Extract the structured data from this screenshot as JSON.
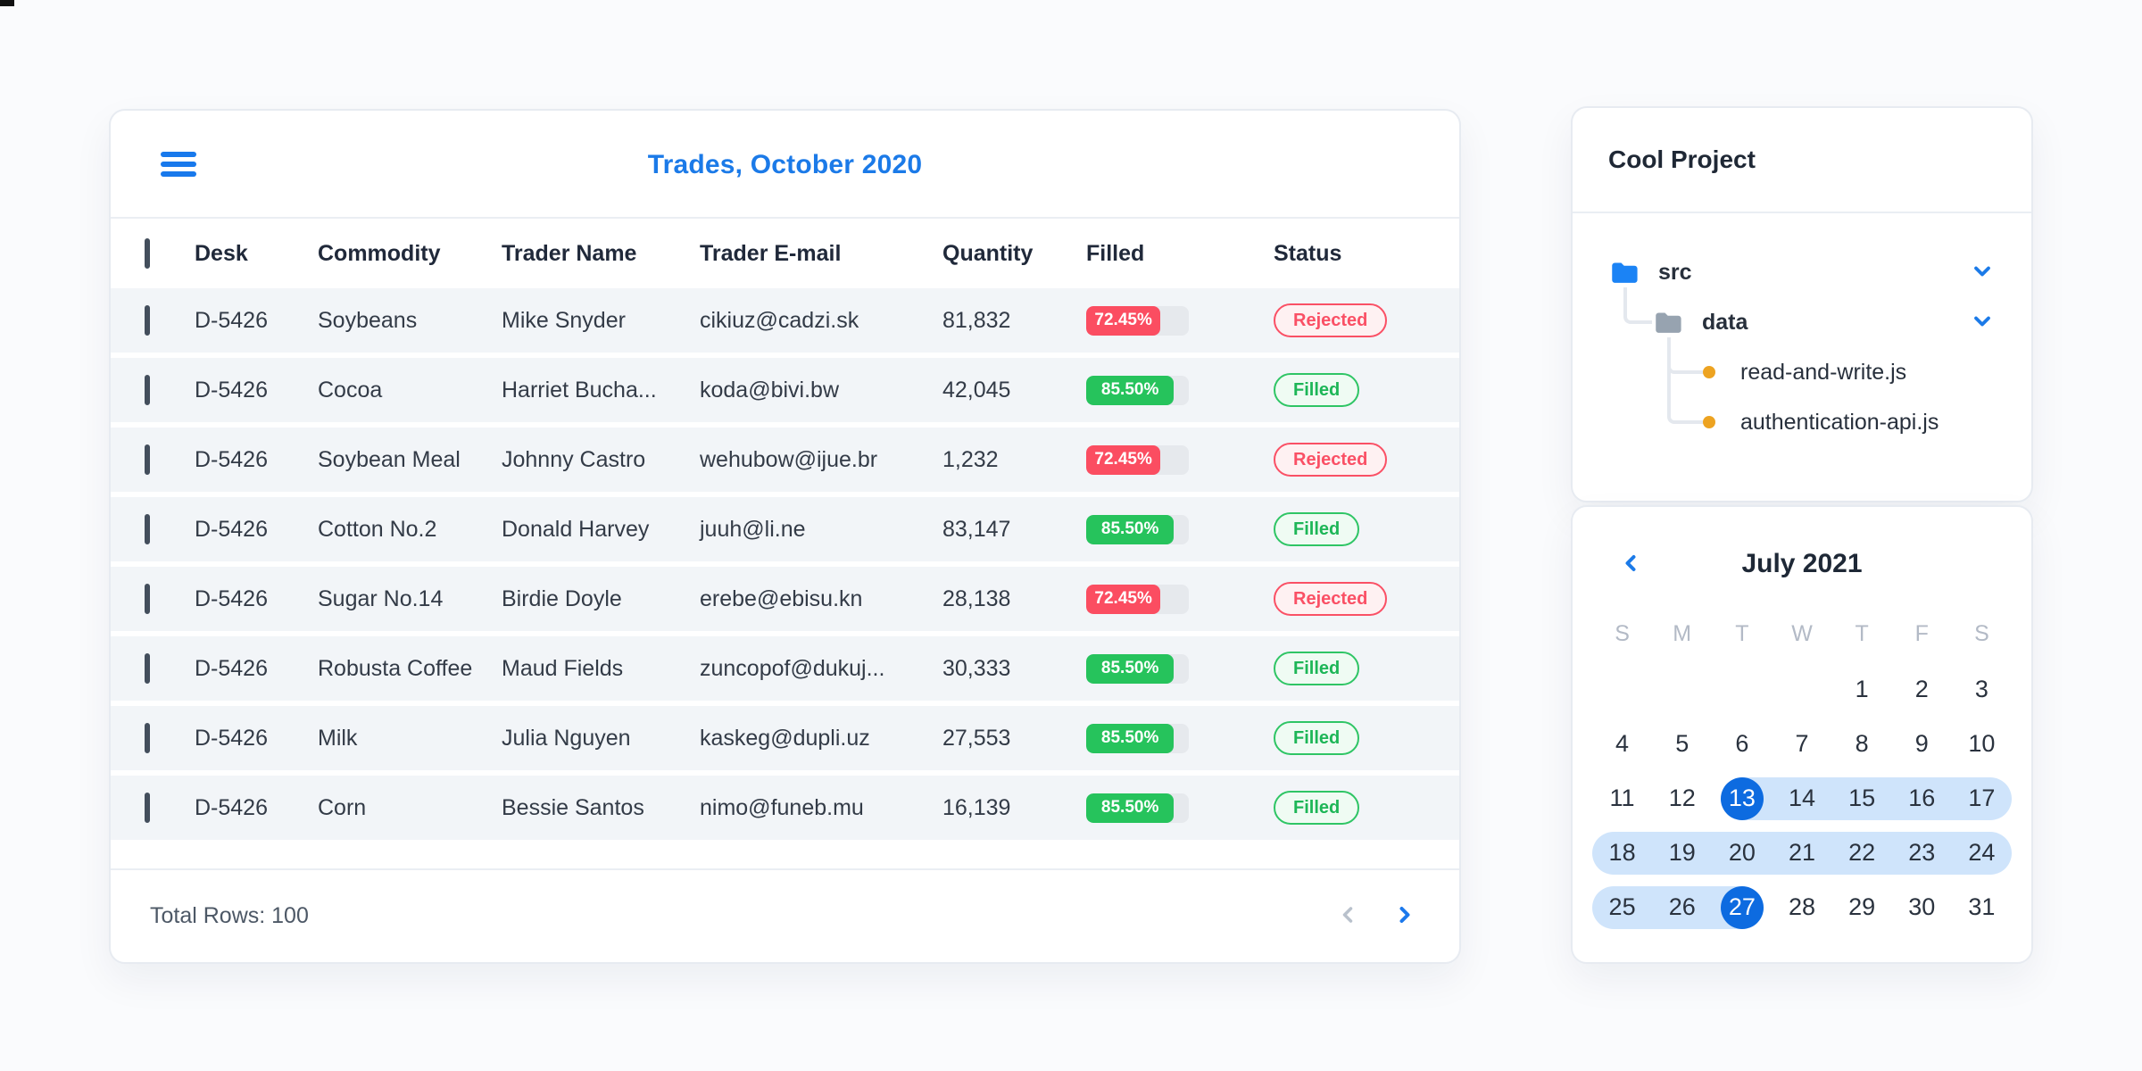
{
  "table": {
    "title": "Trades, October 2020",
    "columns": [
      "Desk",
      "Commodity",
      "Trader Name",
      "Trader E-mail",
      "Quantity",
      "Filled",
      "Status"
    ],
    "rows": [
      {
        "desk": "D-5426",
        "commodity": "Soybeans",
        "trader": "Mike Snyder",
        "email": "cikiuz@cadzi.sk",
        "quantity": "81,832",
        "filled_label": "72.45%",
        "filled_pct": 72.45,
        "status": "Rejected"
      },
      {
        "desk": "D-5426",
        "commodity": "Cocoa",
        "trader": "Harriet Bucha...",
        "email": "koda@bivi.bw",
        "quantity": "42,045",
        "filled_label": "85.50%",
        "filled_pct": 85.5,
        "status": "Filled"
      },
      {
        "desk": "D-5426",
        "commodity": "Soybean Meal",
        "trader": "Johnny Castro",
        "email": "wehubow@ijue.br",
        "quantity": "1,232",
        "filled_label": "72.45%",
        "filled_pct": 72.45,
        "status": "Rejected"
      },
      {
        "desk": "D-5426",
        "commodity": "Cotton No.2",
        "trader": "Donald Harvey",
        "email": "juuh@li.ne",
        "quantity": "83,147",
        "filled_label": "85.50%",
        "filled_pct": 85.5,
        "status": "Filled"
      },
      {
        "desk": "D-5426",
        "commodity": "Sugar No.14",
        "trader": "Birdie Doyle",
        "email": "erebe@ebisu.kn",
        "quantity": "28,138",
        "filled_label": "72.45%",
        "filled_pct": 72.45,
        "status": "Rejected"
      },
      {
        "desk": "D-5426",
        "commodity": "Robusta Coffee",
        "trader": "Maud Fields",
        "email": "zuncopof@dukuj...",
        "quantity": "30,333",
        "filled_label": "85.50%",
        "filled_pct": 85.5,
        "status": "Filled"
      },
      {
        "desk": "D-5426",
        "commodity": "Milk",
        "trader": "Julia Nguyen",
        "email": "kaskeg@dupli.uz",
        "quantity": "27,553",
        "filled_label": "85.50%",
        "filled_pct": 85.5,
        "status": "Filled"
      },
      {
        "desk": "D-5426",
        "commodity": "Corn",
        "trader": "Bessie Santos",
        "email": "nimo@funeb.mu",
        "quantity": "16,139",
        "filled_label": "85.50%",
        "filled_pct": 85.5,
        "status": "Filled"
      }
    ],
    "footer_label": "Total Rows: 100"
  },
  "tree": {
    "title": "Cool Project",
    "nodes": [
      {
        "label": "src",
        "type": "folder",
        "color": "blue",
        "depth": 0,
        "chevron": true
      },
      {
        "label": "data",
        "type": "folder",
        "color": "gray",
        "depth": 1,
        "chevron": true
      },
      {
        "label": "read-and-write.js",
        "type": "file",
        "depth": 2
      },
      {
        "label": "authentication-api.js",
        "type": "file",
        "depth": 2
      }
    ]
  },
  "calendar": {
    "month_label": "July 2021",
    "dow": [
      "S",
      "M",
      "T",
      "W",
      "T",
      "F",
      "S"
    ],
    "weeks": [
      [
        null,
        null,
        null,
        null,
        1,
        2,
        3
      ],
      [
        4,
        5,
        6,
        7,
        8,
        9,
        10
      ],
      [
        11,
        12,
        13,
        14,
        15,
        16,
        17
      ],
      [
        18,
        19,
        20,
        21,
        22,
        23,
        24
      ],
      [
        25,
        26,
        27,
        28,
        29,
        30,
        31
      ]
    ],
    "range_start": 13,
    "range_end": 27
  },
  "colors": {
    "accent_blue": "#1b7ae8",
    "selected_day_blue": "#0d6be0",
    "range_band_blue": "#cfe4fb",
    "rejected_red": "#fa5065",
    "filled_green": "#26c35c",
    "progress_track": "#e6e9ed",
    "file_dot_orange": "#eda321"
  }
}
